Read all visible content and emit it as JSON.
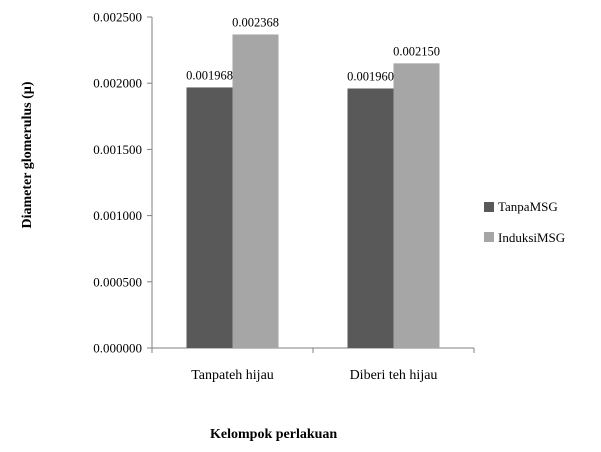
{
  "chart_data": {
    "type": "bar",
    "categories": [
      "Tanpateh hijau",
      "Diberi teh hijau"
    ],
    "series": [
      {
        "name": "TanpaMSG",
        "values": [
          0.001968,
          0.00196
        ],
        "labels": [
          "0.001968",
          "0.001960"
        ],
        "color": "#595959"
      },
      {
        "name": "InduksiMSG",
        "values": [
          0.002368,
          0.00215
        ],
        "labels": [
          "0.002368",
          "0.002150"
        ],
        "color": "#a6a6a6"
      }
    ],
    "xlabel": "Kelompok perlakuan",
    "ylabel": "Diameter glomerulus (µ)",
    "ylim": [
      0,
      0.0025
    ],
    "yticks": [
      "0.000000",
      "0.000500",
      "0.001000",
      "0.001500",
      "0.002000",
      "0.002500"
    ],
    "legend_position": "right"
  }
}
